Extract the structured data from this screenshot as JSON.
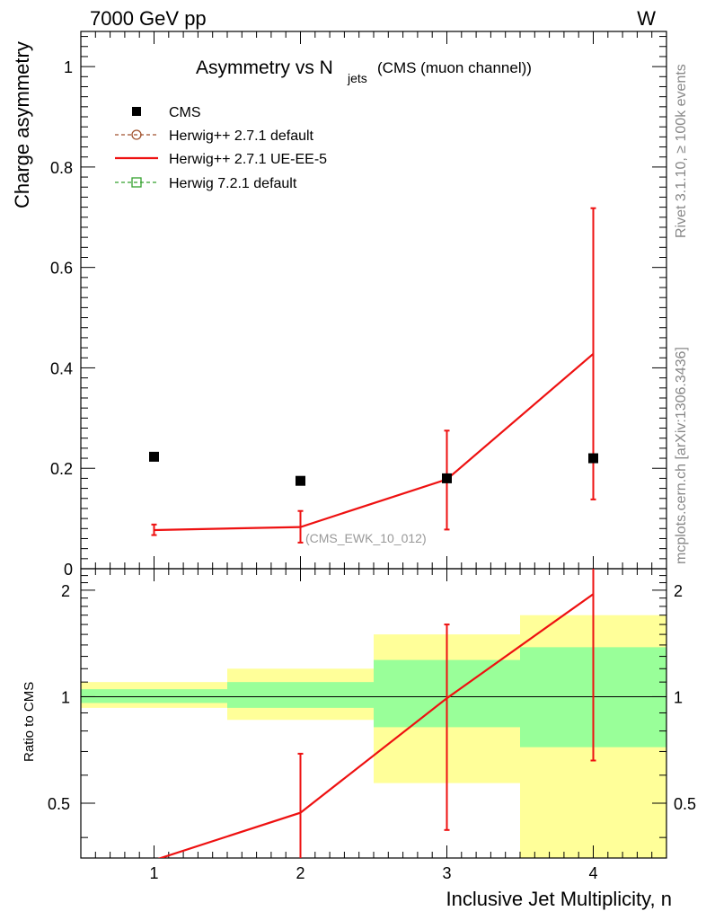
{
  "header": {
    "left": "7000 GeV pp",
    "right": "W"
  },
  "title": {
    "main": "Asymmetry vs N",
    "subscript": "jets",
    "suffix": "(CMS (muon channel))"
  },
  "side_labels": {
    "rivet": "Rivet 3.1.10, ≥ 100k events",
    "mcplots": "mcplots.cern.ch [arXiv:1306.3436]"
  },
  "watermark": "(CMS_EWK_10_012)",
  "legend": [
    {
      "label": "CMS",
      "color": "#000000",
      "marker": "square"
    },
    {
      "label": "Herwig++ 2.7.1 default",
      "color": "#a0522d",
      "marker": "circle-dashed"
    },
    {
      "label": "Herwig++ 2.7.1 UE-EE-5",
      "color": "#ee1111",
      "marker": "line"
    },
    {
      "label": "Herwig 7.2.1 default",
      "color": "#33a02c",
      "marker": "square-dashed"
    }
  ],
  "colors": {
    "band_inner": "#99ff99",
    "band_outer": "#ffff99",
    "mc": "#ee1111",
    "data": "#000000"
  },
  "chart_data": [
    {
      "type": "scatter",
      "ylabel": "Charge asymmetry",
      "ylim": [
        0,
        1.07
      ],
      "yticks": [
        0,
        0.2,
        0.4,
        0.6,
        0.8,
        1
      ],
      "ytick_labels": [
        "0",
        "0.2",
        "0.4",
        "0.6",
        "0.8",
        "1"
      ],
      "xlim": [
        0.5,
        4.5
      ],
      "series": [
        {
          "name": "CMS",
          "x": [
            1,
            2,
            3,
            4
          ],
          "y": [
            0.223,
            0.175,
            0.18,
            0.22
          ]
        },
        {
          "name": "Herwig++ 2.7.1 UE-EE-5",
          "x": [
            1,
            2,
            3,
            4
          ],
          "y": [
            0.077,
            0.083,
            0.178,
            0.428
          ],
          "err_low": [
            0.067,
            0.052,
            0.078,
            0.138
          ],
          "err_high": [
            0.088,
            0.115,
            0.275,
            0.718
          ]
        }
      ]
    },
    {
      "type": "line",
      "ylabel": "Ratio to CMS",
      "xlabel": "Inclusive Jet Multiplicity, n",
      "ylim": [
        0.35,
        2.3
      ],
      "yticks": [
        0.5,
        1,
        2
      ],
      "ytick_labels": [
        "0.5",
        "1",
        "2"
      ],
      "xlim": [
        0.5,
        4.5
      ],
      "xticks": [
        1,
        2,
        3,
        4
      ],
      "xtick_labels": [
        "1",
        "2",
        "3",
        "4"
      ],
      "bands": [
        {
          "x0": 0.5,
          "x1": 1.5,
          "inner": [
            0.96,
            1.05
          ],
          "outer": [
            0.93,
            1.1
          ]
        },
        {
          "x0": 1.5,
          "x1": 2.5,
          "inner": [
            0.93,
            1.1
          ],
          "outer": [
            0.86,
            1.2
          ]
        },
        {
          "x0": 2.5,
          "x1": 3.5,
          "inner": [
            0.82,
            1.27
          ],
          "outer": [
            0.57,
            1.5
          ]
        },
        {
          "x0": 3.5,
          "x1": 4.5,
          "inner": [
            0.72,
            1.38
          ],
          "outer": [
            0.3,
            1.7
          ]
        }
      ],
      "series": [
        {
          "name": "Herwig++ 2.7.1 UE-EE-5",
          "x": [
            1,
            2,
            3,
            4
          ],
          "y": [
            0.345,
            0.47,
            0.99,
            1.95
          ],
          "err_low": [
            null,
            0.3,
            0.42,
            0.66
          ],
          "err_high": [
            null,
            0.69,
            1.6,
            2.35
          ]
        }
      ]
    }
  ]
}
